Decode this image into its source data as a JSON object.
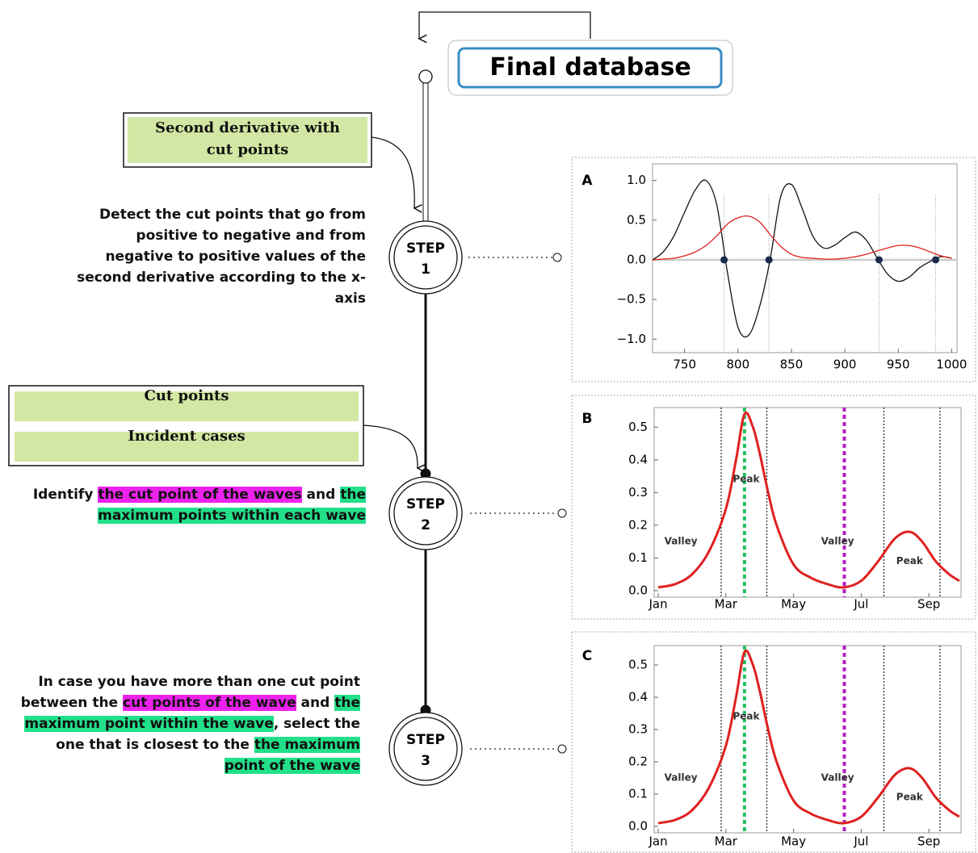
{
  "header": {
    "title": "Final database"
  },
  "inputs": [
    {
      "lines": [
        "Second derivative with",
        "cut points"
      ]
    },
    {
      "lines": [
        "Cut points"
      ]
    },
    {
      "lines": [
        "Incident cases"
      ]
    }
  ],
  "steps": [
    {
      "label": "STEP",
      "number": "1",
      "description": [
        {
          "text": "Detect the cut points that go from positive to negative and from negative to positive values of the second derivative according to the x-axis"
        }
      ]
    },
    {
      "label": "STEP",
      "number": "2",
      "description": [
        {
          "text": "Identify "
        },
        {
          "text": "the cut point of the waves",
          "highlight": "#ee22ee"
        },
        {
          "text": " and "
        },
        {
          "text": "the maximum points within each wave",
          "highlight": "#22e08a"
        }
      ]
    },
    {
      "label": "STEP",
      "number": "3",
      "description": [
        {
          "text": "In case you have more than one cut point between the "
        },
        {
          "text": "cut points of the wave",
          "highlight": "#ee22ee"
        },
        {
          "text": " and "
        },
        {
          "text": "the maximum point within the wave",
          "highlight": "#22e08a"
        },
        {
          "text": ", select the one that is closest to the "
        },
        {
          "text": " the maximum point of the wave",
          "highlight": "#22e08a"
        }
      ]
    }
  ],
  "chart_data": [
    {
      "type": "line",
      "title": "A",
      "x": [
        720,
        730,
        740,
        750,
        760,
        770,
        780,
        790,
        800,
        810,
        820,
        830,
        840,
        850,
        860,
        870,
        880,
        890,
        900,
        910,
        920,
        930,
        940,
        950,
        960,
        970,
        980,
        990,
        1000
      ],
      "series": [
        {
          "color": "#111111",
          "values": [
            0,
            0.1,
            0.3,
            0.6,
            0.88,
            1.0,
            0.7,
            -0.15,
            -0.85,
            -0.95,
            -0.6,
            0.0,
            0.8,
            0.95,
            0.65,
            0.3,
            0.15,
            0.18,
            0.28,
            0.35,
            0.25,
            0.03,
            -0.18,
            -0.27,
            -0.22,
            -0.1,
            -0.02,
            0.04,
            0.02
          ]
        },
        {
          "color": "#e02020",
          "values": [
            0,
            0.01,
            0.02,
            0.05,
            0.1,
            0.18,
            0.3,
            0.45,
            0.53,
            0.55,
            0.48,
            0.32,
            0.17,
            0.07,
            0.03,
            0.02,
            0.01,
            0.01,
            0.02,
            0.04,
            0.07,
            0.11,
            0.15,
            0.18,
            0.18,
            0.15,
            0.1,
            0.05,
            0.02
          ]
        }
      ],
      "points": {
        "x": [
          787,
          829,
          932,
          985
        ],
        "values": [
          0,
          0,
          0,
          0
        ],
        "color": "#1a2a4a"
      },
      "xlim": [
        720,
        1005
      ],
      "xticks": [
        750,
        800,
        850,
        900,
        950,
        1000
      ],
      "ylim": [
        -1.17,
        1.21
      ],
      "yticks": [
        {
          "value": -1,
          "label": "−1.0"
        },
        {
          "value": -0.5,
          "label": "−0.5"
        },
        {
          "value": 0,
          "label": "0.0"
        },
        0.5,
        {
          "value": 1,
          "label": "1.0"
        }
      ]
    },
    {
      "type": "line",
      "title": "B",
      "x": [
        1,
        1.5,
        2,
        2.5,
        3,
        3.3,
        3.55,
        3.8,
        4,
        4.25,
        4.5,
        5,
        5.5,
        6,
        6.48,
        7,
        7.5,
        8,
        8.43,
        8.8,
        9.2,
        9.6,
        9.9
      ],
      "series": [
        {
          "color": "#e02020",
          "values": [
            0.01,
            0.02,
            0.05,
            0.12,
            0.25,
            0.4,
            0.54,
            0.5,
            0.42,
            0.3,
            0.2,
            0.08,
            0.04,
            0.02,
            0.01,
            0.03,
            0.09,
            0.16,
            0.18,
            0.15,
            0.09,
            0.05,
            0.03
          ]
        }
      ],
      "vlines": [
        {
          "x": 2.86,
          "color": "#222222"
        },
        {
          "x": 4.21,
          "color": "#222222"
        },
        {
          "x": 7.67,
          "color": "#222222"
        },
        {
          "x": 9.33,
          "color": "#222222"
        },
        {
          "x": 3.55,
          "color": "#22c060"
        },
        {
          "x": 6.5,
          "color": "#b020c0"
        }
      ],
      "annotations": [
        {
          "text": "Valley",
          "x": 1.67,
          "y": 0.15
        },
        {
          "text": "Peak",
          "x": 3.6,
          "y": 0.34
        },
        {
          "text": "Valley",
          "x": 6.3,
          "y": 0.15
        },
        {
          "text": "Peak",
          "x": 8.43,
          "y": 0.09
        }
      ],
      "xlim": [
        0.88,
        9.95
      ],
      "xticks": [
        {
          "value": 1,
          "label": "Jan"
        },
        {
          "value": 3,
          "label": "Mar"
        },
        {
          "value": 5,
          "label": "May"
        },
        {
          "value": 7,
          "label": "Jul"
        },
        {
          "value": 9,
          "label": "Sep"
        }
      ],
      "ylim": [
        -0.02,
        0.56
      ],
      "yticks": [
        {
          "value": 0,
          "label": "0.0"
        },
        0.1,
        0.2,
        0.3,
        0.4,
        0.5
      ]
    },
    {
      "type": "line",
      "title": "C",
      "x": [
        1,
        1.5,
        2,
        2.5,
        3,
        3.3,
        3.55,
        3.8,
        4,
        4.25,
        4.5,
        5,
        5.5,
        6,
        6.48,
        7,
        7.5,
        8,
        8.43,
        8.8,
        9.2,
        9.6,
        9.9
      ],
      "series": [
        {
          "color": "#e02020",
          "values": [
            0.01,
            0.02,
            0.05,
            0.12,
            0.25,
            0.4,
            0.54,
            0.5,
            0.42,
            0.3,
            0.2,
            0.08,
            0.04,
            0.02,
            0.01,
            0.03,
            0.09,
            0.16,
            0.18,
            0.15,
            0.09,
            0.05,
            0.03
          ]
        }
      ],
      "vlines": [
        {
          "x": 2.86,
          "color": "#222222"
        },
        {
          "x": 4.21,
          "color": "#222222"
        },
        {
          "x": 7.67,
          "color": "#222222"
        },
        {
          "x": 9.33,
          "color": "#222222"
        },
        {
          "x": 3.55,
          "color": "#22c060"
        },
        {
          "x": 6.5,
          "color": "#b020c0"
        }
      ],
      "annotations": [
        {
          "text": "Valley",
          "x": 1.67,
          "y": 0.15
        },
        {
          "text": "Peak",
          "x": 3.6,
          "y": 0.34
        },
        {
          "text": "Valley",
          "x": 6.3,
          "y": 0.15
        },
        {
          "text": "Peak",
          "x": 8.43,
          "y": 0.09
        }
      ],
      "xlim": [
        0.88,
        9.95
      ],
      "xticks": [
        {
          "value": 1,
          "label": "Jan"
        },
        {
          "value": 3,
          "label": "Mar"
        },
        {
          "value": 5,
          "label": "May"
        },
        {
          "value": 7,
          "label": "Jul"
        },
        {
          "value": 9,
          "label": "Sep"
        }
      ],
      "ylim": [
        -0.02,
        0.56
      ],
      "yticks": [
        {
          "value": 0,
          "label": "0.0"
        },
        0.1,
        0.2,
        0.3,
        0.4,
        0.5
      ]
    }
  ]
}
